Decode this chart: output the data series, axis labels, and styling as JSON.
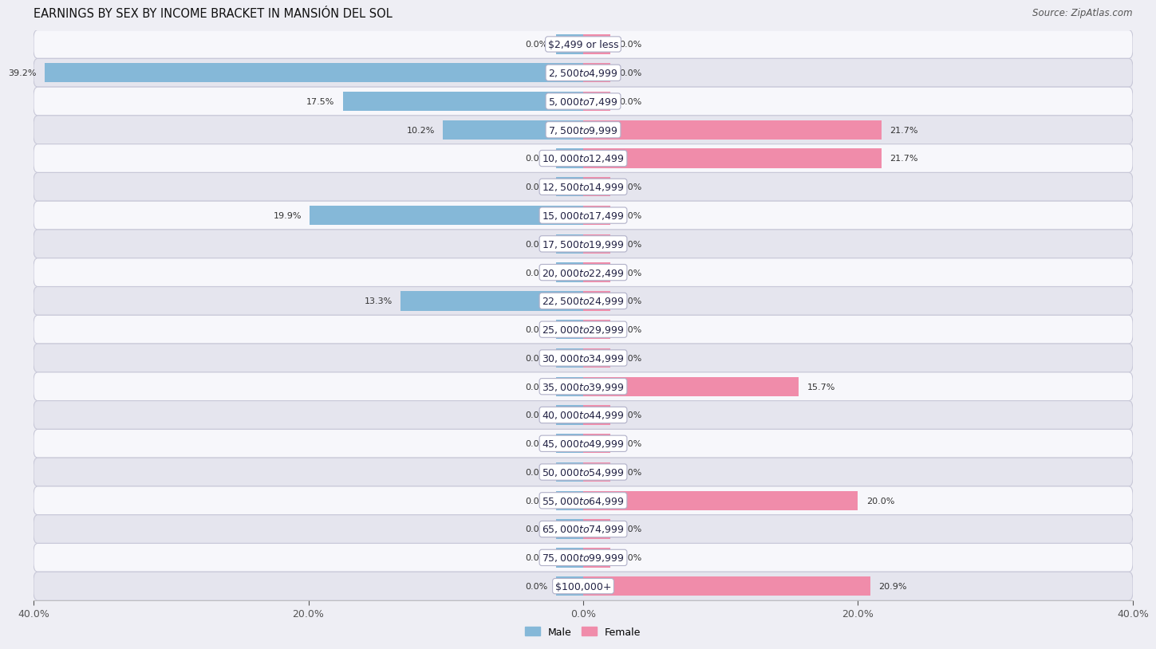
{
  "title": "EARNINGS BY SEX BY INCOME BRACKET IN MANSIÓN DEL SOL",
  "source": "Source: ZipAtlas.com",
  "categories": [
    "$2,499 or less",
    "$2,500 to $4,999",
    "$5,000 to $7,499",
    "$7,500 to $9,999",
    "$10,000 to $12,499",
    "$12,500 to $14,999",
    "$15,000 to $17,499",
    "$17,500 to $19,999",
    "$20,000 to $22,499",
    "$22,500 to $24,999",
    "$25,000 to $29,999",
    "$30,000 to $34,999",
    "$35,000 to $39,999",
    "$40,000 to $44,999",
    "$45,000 to $49,999",
    "$50,000 to $54,999",
    "$55,000 to $64,999",
    "$65,000 to $74,999",
    "$75,000 to $99,999",
    "$100,000+"
  ],
  "male_values": [
    0.0,
    39.2,
    17.5,
    10.2,
    0.0,
    0.0,
    19.9,
    0.0,
    0.0,
    13.3,
    0.0,
    0.0,
    0.0,
    0.0,
    0.0,
    0.0,
    0.0,
    0.0,
    0.0,
    0.0
  ],
  "female_values": [
    0.0,
    0.0,
    0.0,
    21.7,
    21.7,
    0.0,
    0.0,
    0.0,
    0.0,
    0.0,
    0.0,
    0.0,
    15.7,
    0.0,
    0.0,
    0.0,
    20.0,
    0.0,
    0.0,
    20.9
  ],
  "male_color": "#85b8d8",
  "female_color": "#f08caa",
  "xlim": 40.0,
  "bar_height": 0.68,
  "bg_color": "#eeeef4",
  "row_alt_color": "#f7f7fb",
  "row_main_color": "#e5e5ee",
  "title_fontsize": 10.5,
  "source_fontsize": 8.5,
  "label_fontsize": 8.0,
  "tick_fontsize": 9.0,
  "cat_fontsize": 9.0
}
